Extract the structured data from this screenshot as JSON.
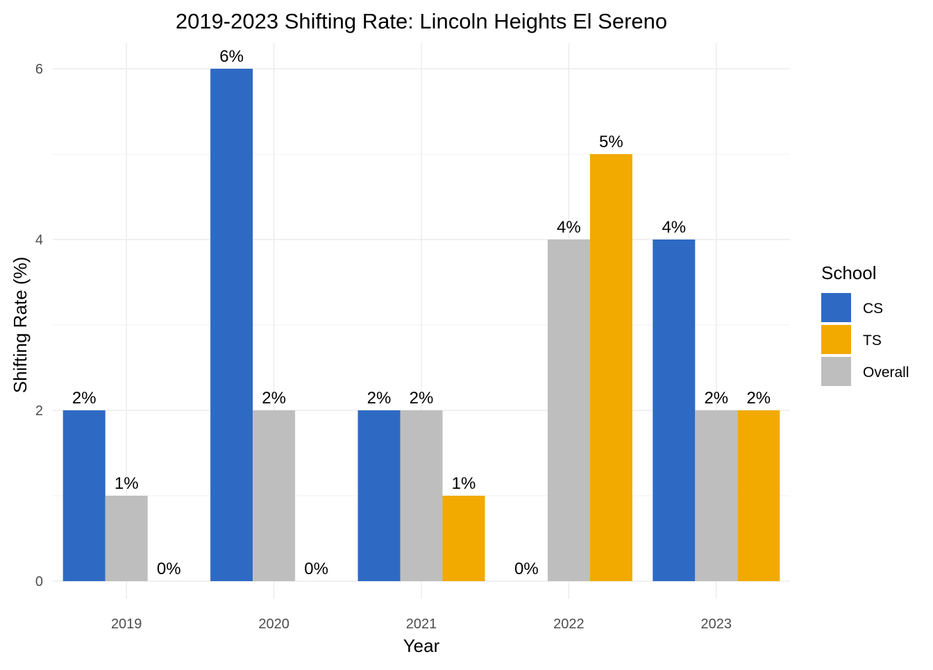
{
  "chart_data": {
    "type": "bar",
    "title": "2019-2023 Shifting Rate: Lincoln Heights El Sereno",
    "xlabel": "Year",
    "ylabel": "Shifting Rate (%)",
    "categories": [
      "2019",
      "2020",
      "2021",
      "2022",
      "2023"
    ],
    "ylim": [
      0,
      6
    ],
    "yticks": [
      "0",
      "2",
      "4",
      "6"
    ],
    "grid": true,
    "legend": {
      "title": "School",
      "position": "right",
      "entries": [
        "CS",
        "TS",
        "Overall"
      ]
    },
    "colors": {
      "CS": "#2e6ac4",
      "TS": "#f2aa00",
      "Overall": "#bebebe"
    },
    "bar_order": [
      "CS",
      "Overall",
      "TS"
    ],
    "series": [
      {
        "name": "CS",
        "values": [
          2,
          6,
          2,
          0,
          4
        ],
        "labels": [
          "2%",
          "6%",
          "2%",
          "0%",
          "4%"
        ]
      },
      {
        "name": "Overall",
        "values": [
          1,
          2,
          2,
          4,
          2
        ],
        "labels": [
          "1%",
          "2%",
          "2%",
          "4%",
          "2%"
        ]
      },
      {
        "name": "TS",
        "values": [
          0,
          0,
          1,
          5,
          2
        ],
        "labels": [
          "0%",
          "0%",
          "1%",
          "5%",
          "2%"
        ]
      }
    ]
  }
}
